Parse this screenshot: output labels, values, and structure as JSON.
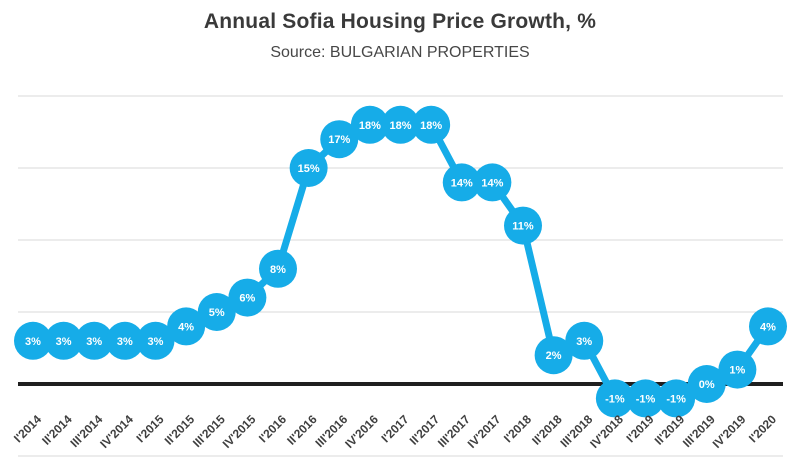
{
  "chart_data": {
    "type": "line",
    "title": "Annual Sofia Housing Price Growth, %",
    "subtitle": "Source: BULGARIAN PROPERTIES",
    "categories": [
      "I'2014",
      "II'2014",
      "III'2014",
      "IV'2014",
      "I'2015",
      "II'2015",
      "III'2015",
      "IV'2015",
      "I'2016",
      "II'2016",
      "III'2016",
      "IV'2016",
      "I'2017",
      "II'2017",
      "III'2017",
      "IV'2017",
      "I'2018",
      "II'2018",
      "III'2018",
      "IV'2018",
      "I'2019",
      "II'2019",
      "III'2019",
      "IV'2019",
      "I'2020"
    ],
    "values": [
      3,
      3,
      3,
      3,
      3,
      4,
      5,
      6,
      8,
      15,
      17,
      18,
      18,
      18,
      14,
      14,
      11,
      2,
      3,
      -1,
      -1,
      -1,
      0,
      1,
      4
    ],
    "point_labels": [
      "3%",
      "3%",
      "3%",
      "3%",
      "3%",
      "4%",
      "5%",
      "6%",
      "8%",
      "15%",
      "17%",
      "18%",
      "18%",
      "18%",
      "14%",
      "14%",
      "11%",
      "2%",
      "3%",
      "-1%",
      "-1%",
      "-1%",
      "0%",
      "1%",
      "4%"
    ],
    "xlabel": "",
    "ylabel": "",
    "ylim": [
      -5,
      20
    ],
    "gridline_step": 5,
    "grid": true,
    "legend_position": "none",
    "colors": {
      "series": "#16ACE8",
      "marker_text": "#FFFFFF",
      "zero_axis": "#1F1F1F",
      "gridline": "#D9D9D9",
      "text": "#3F3F3F",
      "background": "#FFFFFF"
    }
  }
}
